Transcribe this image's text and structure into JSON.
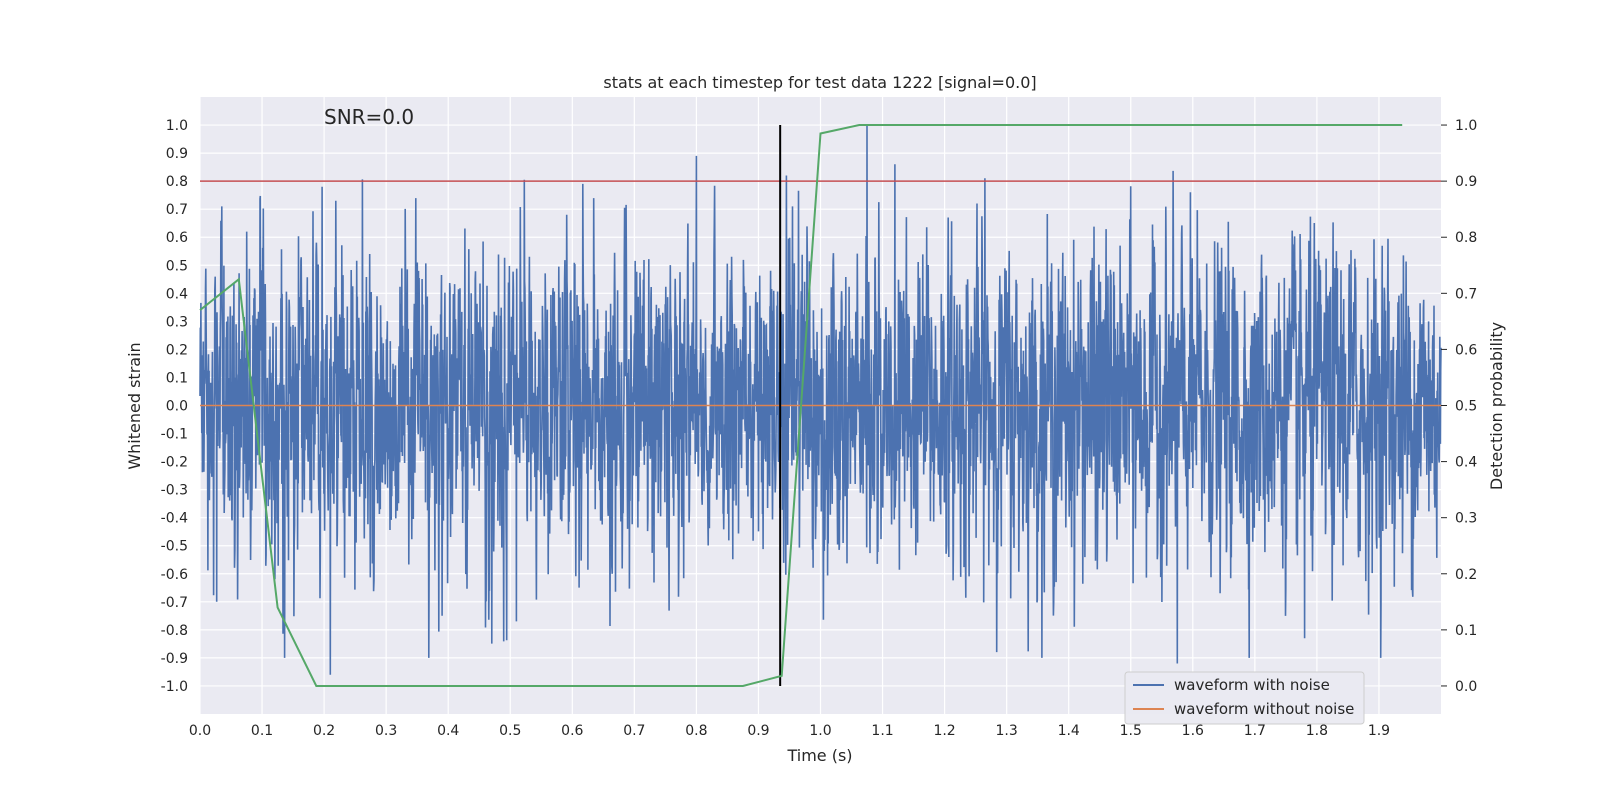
{
  "chart_data": {
    "type": "line",
    "title": "stats at each timestep for test data 1222 [signal=0.0]",
    "xlabel": "Time (s)",
    "ylabel": "Whitened strain",
    "y2label": "Detection probability",
    "annotation": "SNR=0.0",
    "xlim": [
      0.0,
      2.0
    ],
    "ylim": [
      -1.1,
      1.1
    ],
    "y2lim": [
      -0.05,
      1.05
    ],
    "xticks": [
      0.0,
      0.1,
      0.2,
      0.3,
      0.4,
      0.5,
      0.6,
      0.7,
      0.8,
      0.9,
      1.0,
      1.1,
      1.2,
      1.3,
      1.4,
      1.5,
      1.6,
      1.7,
      1.8,
      1.9
    ],
    "xtick_labels": [
      "0.0",
      "0.1",
      "0.2",
      "0.3",
      "0.4",
      "0.5",
      "0.6",
      "0.7",
      "0.8",
      "0.9",
      "1.0",
      "1.1",
      "1.2",
      "1.3",
      "1.4",
      "1.5",
      "1.6",
      "1.7",
      "1.8",
      "1.9"
    ],
    "yticks": [
      1.0,
      0.9,
      0.8,
      0.7,
      0.6,
      0.5,
      0.4,
      0.3,
      0.2,
      0.1,
      0.0,
      -0.1,
      -0.2,
      -0.3,
      -0.4,
      -0.5,
      -0.6,
      -0.7,
      -0.8,
      -0.9,
      -1.0
    ],
    "ytick_labels": [
      "1.0",
      "0.9",
      "0.8",
      "0.7",
      "0.6",
      "0.5",
      "0.4",
      "0.3",
      "0.2",
      "0.1",
      "0.0",
      "-0.1",
      "-0.2",
      "-0.3",
      "-0.4",
      "-0.5",
      "-0.6",
      "-0.7",
      "-0.8",
      "-0.9",
      "-1.0"
    ],
    "y2ticks": [
      1.0,
      0.9,
      0.8,
      0.7,
      0.6,
      0.5,
      0.4,
      0.3,
      0.2,
      0.1,
      0.0
    ],
    "y2tick_labels": [
      "1.0",
      "0.9",
      "0.8",
      "0.7",
      "0.6",
      "0.5",
      "0.4",
      "0.3",
      "0.2",
      "0.1",
      "0.0"
    ],
    "grid": true,
    "legend_position": "lower-right",
    "series": [
      {
        "name": "waveform with noise",
        "color": "#4c72b0",
        "axis": "left",
        "sample_count": 4096,
        "approx_amplitude": 0.3,
        "peaks": [
          {
            "x": 0.035,
            "y": 0.71
          },
          {
            "x": 0.027,
            "y": -0.7
          },
          {
            "x": 0.075,
            "y": 0.62
          },
          {
            "x": 0.197,
            "y": 0.78
          },
          {
            "x": 0.21,
            "y": -0.96
          },
          {
            "x": 0.39,
            "y": -0.75
          },
          {
            "x": 0.51,
            "y": -0.77
          },
          {
            "x": 0.617,
            "y": 0.79
          },
          {
            "x": 0.8,
            "y": 0.89
          },
          {
            "x": 0.945,
            "y": 0.82
          },
          {
            "x": 1.075,
            "y": 1.0
          },
          {
            "x": 1.12,
            "y": 0.86
          },
          {
            "x": 1.265,
            "y": 0.81
          },
          {
            "x": 1.575,
            "y": -0.92
          },
          {
            "x": 1.78,
            "y": -0.83
          }
        ]
      },
      {
        "name": "waveform without noise",
        "color": "#dd8452",
        "axis": "left",
        "x": [
          0.0,
          2.0
        ],
        "y": [
          0.0,
          0.0
        ]
      },
      {
        "name": "detection probability",
        "color": "#55a868",
        "axis": "right",
        "x": [
          0.0,
          0.0625,
          0.125,
          0.1875,
          0.25,
          0.3125,
          0.375,
          0.4375,
          0.5,
          0.5625,
          0.625,
          0.6875,
          0.75,
          0.8125,
          0.875,
          0.9375,
          1.0,
          1.0625,
          1.125,
          1.1875,
          1.25,
          1.3125,
          1.375,
          1.4375,
          1.5,
          1.5625,
          1.625,
          1.6875,
          1.75,
          1.8125,
          1.875,
          1.9375
        ],
        "y": [
          0.67,
          0.725,
          0.14,
          0.0,
          0.0,
          0.0,
          0.0,
          0.0,
          0.0,
          0.0,
          0.0,
          0.0,
          0.0,
          0.0,
          0.0,
          0.018,
          0.985,
          1.0,
          1.0,
          1.0,
          1.0,
          1.0,
          1.0,
          1.0,
          1.0,
          1.0,
          1.0,
          1.0,
          1.0,
          1.0,
          1.0,
          1.0
        ]
      }
    ],
    "reference_lines": [
      {
        "name": "detection threshold",
        "orientation": "horizontal",
        "axis": "right",
        "value": 0.9,
        "color": "#c44e52"
      },
      {
        "name": "marker",
        "orientation": "vertical",
        "value": 0.935,
        "y_range": [
          -1.0,
          1.0
        ],
        "color": "#000000"
      }
    ]
  }
}
